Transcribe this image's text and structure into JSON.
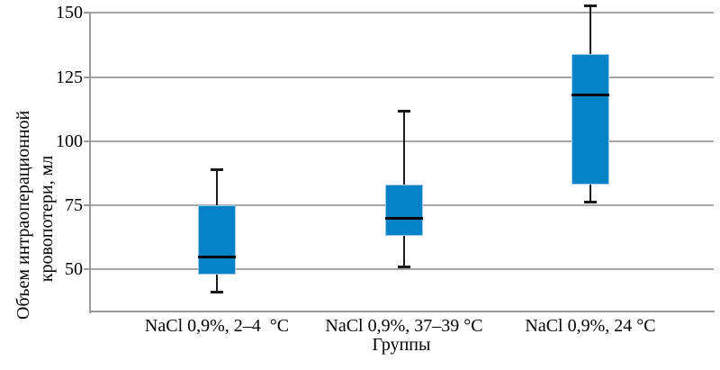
{
  "chart_data": {
    "type": "box",
    "title": "",
    "xlabel": "Группы",
    "ylabel": "Объем интраоперационной кровопотери, мл",
    "ylabel_lines": [
      "Объем интраоперационной",
      "кровопотери, мл"
    ],
    "ylim": [
      34,
      155
    ],
    "yticks": [
      50,
      75,
      100,
      125,
      150
    ],
    "grid": true,
    "legend": "none",
    "categories": [
      "NaCl 0,9%, 2–4  °C",
      "NaCl 0,9%, 37–39 °C",
      "NaCl 0,9%, 24 °C"
    ],
    "series": [
      {
        "name": "NaCl 0,9%, 2–4 °C",
        "whisker_low": 41,
        "q1": 48,
        "median": 55,
        "q3": 75,
        "whisker_high": 89
      },
      {
        "name": "NaCl 0,9%, 37–39 °C",
        "whisker_low": 51,
        "q1": 63,
        "median": 70,
        "q3": 83,
        "whisker_high": 112
      },
      {
        "name": "NaCl 0,9%, 24 °C",
        "whisker_low": 76,
        "q1": 83,
        "median": 118,
        "q3": 134,
        "whisker_high": 153
      }
    ],
    "colors": {
      "box_fill": "#0482c8",
      "box_border": "#9fcbe8",
      "median": "#000000",
      "whisker": "#1a1a1a",
      "gridline": "#a6a6a6",
      "axis": "#9a9a9a",
      "text": "#000000",
      "background": "#ffffff"
    }
  }
}
